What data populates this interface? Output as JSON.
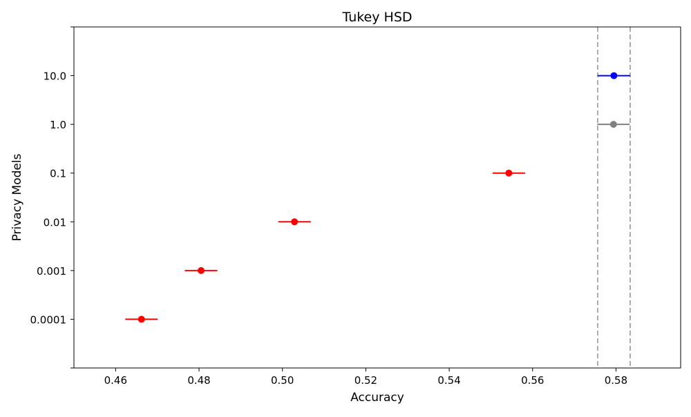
{
  "chart_data": {
    "type": "scatter",
    "title": "Tukey HSD",
    "xlabel": "Accuracy",
    "ylabel": "Privacy Models",
    "xlim": [
      0.45,
      0.5955
    ],
    "xticks": [
      0.46,
      0.48,
      0.5,
      0.52,
      0.54,
      0.56,
      0.58
    ],
    "xtick_labels": [
      "0.46",
      "0.48",
      "0.50",
      "0.52",
      "0.54",
      "0.56",
      "0.58"
    ],
    "categories": [
      "0.0001",
      "0.001",
      "0.01",
      "0.1",
      "1.0",
      "10.0"
    ],
    "points": [
      {
        "category": "0.0001",
        "mean": 0.4662,
        "low": 0.4623,
        "high": 0.4701,
        "color": "#ff0000"
      },
      {
        "category": "0.001",
        "mean": 0.4805,
        "low": 0.4766,
        "high": 0.4844,
        "color": "#ff0000"
      },
      {
        "category": "0.01",
        "mean": 0.5029,
        "low": 0.499,
        "high": 0.5068,
        "color": "#ff0000"
      },
      {
        "category": "0.1",
        "mean": 0.5543,
        "low": 0.5504,
        "high": 0.5582,
        "color": "#ff0000"
      },
      {
        "category": "1.0",
        "mean": 0.5794,
        "low": 0.5755,
        "high": 0.5833,
        "color": "#808080"
      },
      {
        "category": "10.0",
        "mean": 0.5795,
        "low": 0.5756,
        "high": 0.5834,
        "color": "#0000ff"
      }
    ],
    "reference_lines": [
      0.5756,
      0.5834
    ],
    "reference_line_color": "#aaaaaa",
    "grid": false,
    "legend": false
  }
}
